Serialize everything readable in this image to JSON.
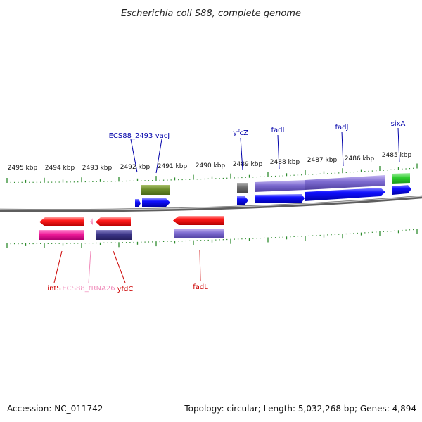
{
  "title": "Escherichia coli S88, complete genome",
  "accession": "Accession: NC_011742",
  "summary": "Topology: circular; Length: 5,032,268 bp; Genes: 4,894",
  "scale_labels": [
    "2495 kbp",
    "2494 kbp",
    "2493 kbp",
    "2492 kbp",
    "2491 kbp",
    "2490 kbp",
    "2489 kbp",
    "2488 kbp",
    "2487 kbp",
    "2486 kbp",
    "2485 kbp"
  ],
  "colors": {
    "backbone": "#8a8a8a",
    "tick": "#2e8b2e",
    "cds_forward": "#0000ee",
    "cds_reverse": "#ee0000",
    "trna": "#f08aba",
    "label_blue": "#0000aa",
    "label_red": "#cc0000",
    "label_pink": "#f08aba"
  },
  "genes_top": [
    {
      "name": "ECS88_2493"
    },
    {
      "name": "vacJ"
    },
    {
      "name": "yfcZ"
    },
    {
      "name": "fadI"
    },
    {
      "name": "fadJ"
    },
    {
      "name": "sixA"
    }
  ],
  "genes_bottom": [
    {
      "name": "intS"
    },
    {
      "name": "ECS88_tRNA26"
    },
    {
      "name": "yfdC"
    },
    {
      "name": "fadL"
    }
  ]
}
